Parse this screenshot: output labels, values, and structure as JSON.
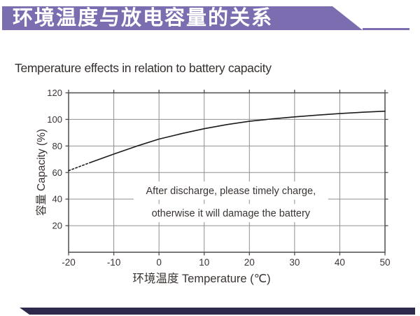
{
  "header": {
    "title": "环境温度与放电容量的关系",
    "banner_color": "#7b6db0"
  },
  "footer": {
    "bar_color": "#2d2a4e"
  },
  "theme": {
    "text_color": "#3a3432",
    "grid_color": "#8f8f8f",
    "frame_color": "#4d4d4d",
    "curve_color": "#1c1c1c"
  },
  "chart_data": {
    "type": "line",
    "title": "Temperature effects in relation to battery capacity",
    "xlabel": "环境温度 Temperature (℃)",
    "ylabel": "容量 Capacity (%)",
    "xlim": [
      -20,
      50
    ],
    "ylim": [
      0,
      120
    ],
    "x_ticks": [
      -20,
      -10,
      0,
      10,
      20,
      30,
      40,
      50
    ],
    "y_ticks": [
      20,
      40,
      60,
      80,
      100,
      120
    ],
    "grid": true,
    "legend": false,
    "series": [
      {
        "name": "capacity-vs-temperature-extrapolated",
        "style": "dotted",
        "x": [
          -20,
          -17.5,
          -15
        ],
        "y": [
          61.4,
          64.6,
          67.8
        ]
      },
      {
        "name": "capacity-vs-temperature",
        "style": "solid",
        "x": [
          -15,
          -10,
          -5,
          0,
          5,
          10,
          15,
          20,
          25,
          30,
          35,
          40,
          45,
          50
        ],
        "y": [
          67.8,
          73.9,
          79.8,
          85.2,
          89.3,
          93.0,
          96.1,
          98.6,
          100.4,
          101.9,
          103.2,
          104.4,
          105.4,
          106.2
        ]
      }
    ],
    "annotations": [
      {
        "text": "After discharge, please timely charge,",
        "x": 15.9,
        "y": 46.4
      },
      {
        "text": "otherwise it will damage the battery",
        "x": 15.9,
        "y": 29.5
      }
    ]
  }
}
